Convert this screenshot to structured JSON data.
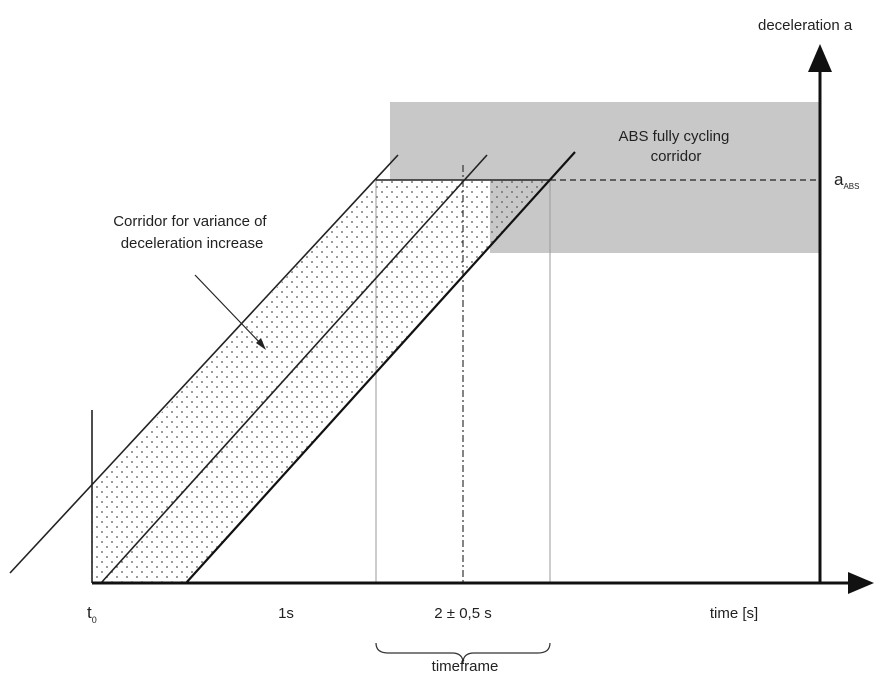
{
  "labels": {
    "y_axis": "deceleration a",
    "x_axis": "time [s]",
    "t0_main": "t",
    "t0_sub": "0",
    "one_s": "1s",
    "two_s": "2 ± 0,5 s",
    "timeframe": "timeframe",
    "a_main": "a",
    "a_sub": "ABS",
    "abs_corridor_line1": "ABS fully cycling",
    "abs_corridor_line2": "corridor",
    "variance_line1": "Corridor for variance of",
    "variance_line2": "deceleration increase"
  },
  "colors": {
    "abs_corridor_fill": "#c8c8c8",
    "axis": "#111111",
    "stipple_dot": "#555555"
  }
}
